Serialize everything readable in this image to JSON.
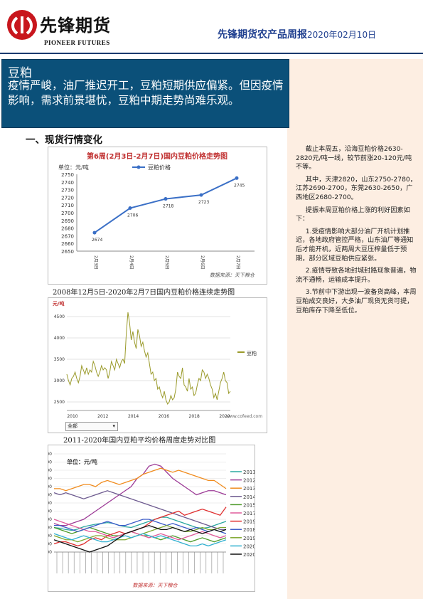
{
  "header": {
    "logo_cn": "先锋期货",
    "logo_en": "PIONEER FUTURES",
    "report_title": "先锋期货农产品周报",
    "report_date": "2020年02月10日"
  },
  "summary": {
    "title": "豆粕",
    "text": "疫情严峻，油厂推迟开工，豆粕短期供应偏紧。但因疫情影响，需求前景堪忧，豆粕中期走势尚难乐观。"
  },
  "section": {
    "heading": "一、现货行情变化"
  },
  "side": {
    "paragraphs": [
      "截止本周五，沿海豆粕价格2630-2820元/吨一线，较节前涨20-120元/吨不等。",
      "其中，天津2820，山东2750-2780，江苏2690-2700，东莞2630-2650，广西地区2680-2700。",
      "提振本周豆粕价格上涨的利好因素如下：",
      "1.受疫情影响大部分油厂开机计划推迟，各地政府管控严格，山东油厂等通知后才能开机，近两周大豆压榨量低于预期，部分区域豆粕供应紧张。",
      "2.疫情导致各地封城封路现象普遍，物流不通畅，运输成本提升。",
      "3.节前中下游出现一波备货高峰，本周豆粕成交良好，大多油厂现货无货可提，豆粕库存下降至低位。"
    ]
  },
  "captions": {
    "chart2": "2008年12月5日-2020年2月7日国内豆粕价格连续走势图",
    "chart3": "2011-2020年国内豆粕平均价格周度走势对比图"
  },
  "chart_data": [
    {
      "type": "line",
      "title": "第6周(2月3日-2月7日)国内豆粕价格走势图",
      "ylabel": "单位：元/吨",
      "legend": "豆粕价格",
      "categories": [
        "2月3日",
        "2月4日",
        "2月5日",
        "2月6日",
        "2月7日"
      ],
      "values": [
        2674,
        2706,
        2718,
        2723,
        2745
      ],
      "ylim": [
        2650,
        2750
      ],
      "yticks": [
        2650,
        2660,
        2670,
        2680,
        2690,
        2700,
        2710,
        2720,
        2730,
        2740,
        2750
      ],
      "source": "数据来源：天下粮仓",
      "color": "#3a6fc6"
    },
    {
      "type": "line",
      "ylabel": "元/吨",
      "legend": "豆粕",
      "xticks": [
        "2010",
        "2012",
        "2014",
        "2016",
        "2018",
        "2020"
      ],
      "yticks": [
        2500,
        3000,
        3500,
        4000,
        4500
      ],
      "ylim": [
        2300,
        4700
      ],
      "approx_series": [
        3150,
        3000,
        2900,
        3050,
        3100,
        3200,
        3050,
        2950,
        3100,
        3350,
        3250,
        3150,
        3300,
        3150,
        3250,
        3200,
        3450,
        3350,
        3200,
        3100,
        3200,
        3350,
        3250,
        3300,
        3250,
        3050,
        3200,
        3450,
        3350,
        3250,
        3500,
        3400,
        3300,
        3450,
        3500,
        3400,
        4100,
        4600,
        4350,
        3950,
        4150,
        3900,
        3750,
        4200,
        4050,
        3800,
        3900,
        3700,
        3550,
        3650,
        3400,
        3150,
        3200,
        3000,
        3050,
        2800,
        2850,
        2700,
        2600,
        2750,
        2550,
        2450,
        2500,
        2650,
        2550,
        2600,
        2800,
        3200,
        3100,
        3050,
        3300,
        2900,
        2850,
        2750,
        3050,
        2800,
        2850,
        2650,
        2700,
        2900,
        3050,
        3000,
        3250,
        3200,
        3050,
        3150,
        3050,
        2900,
        2800,
        2600,
        2700,
        2550,
        2750,
        2950,
        3050,
        3200,
        3000,
        2950,
        2700,
        2750
      ],
      "url": "www.cofeed.com",
      "select_value": "全部",
      "color": "#9a9a2a"
    },
    {
      "type": "line",
      "ylabel": "单位：元/吨",
      "yticks": [
        2400,
        2600,
        2800,
        3000,
        3200,
        3400,
        3600,
        3800,
        4000,
        4200,
        4400,
        4600,
        4800
      ],
      "ylim": [
        2400,
        4800
      ],
      "source": "数据来源：天下粮仓",
      "series": [
        {
          "name": "2011年",
          "color": "#2aa8a0",
          "values": [
            3000,
            2980,
            2950,
            2930,
            2960,
            3020,
            3050,
            3080,
            3100,
            3120,
            3100,
            3050,
            3020,
            3000,
            3050,
            3100,
            3150,
            3200,
            3250,
            3250,
            3200,
            3150,
            3100,
            3050,
            3000,
            2980,
            3000,
            3050,
            3100,
            3150
          ]
        },
        {
          "name": "2012年",
          "color": "#9c3a96",
          "values": [
            3100,
            3050,
            3050,
            3100,
            3150,
            3200,
            3300,
            3400,
            3500,
            3600,
            3700,
            3800,
            3900,
            4000,
            4200,
            4300,
            4500,
            4550,
            4500,
            4350,
            4200,
            4100,
            4000,
            3900,
            3800,
            3850,
            3900,
            3900,
            3850,
            3800
          ]
        },
        {
          "name": "2013年",
          "color": "#f08c1e",
          "values": [
            3950,
            3950,
            3900,
            3950,
            4000,
            4050,
            4050,
            4000,
            4100,
            4150,
            4100,
            4050,
            4100,
            4150,
            4200,
            4300,
            4350,
            4400,
            4450,
            4400,
            4350,
            4400,
            4350,
            4300,
            4250,
            4200,
            4150,
            4150,
            4050,
            3950
          ]
        },
        {
          "name": "2014年",
          "color": "#6d5a8f",
          "values": [
            3850,
            3800,
            3850,
            3800,
            3750,
            3700,
            3750,
            3800,
            3850,
            3900,
            3850,
            3800,
            3750,
            3700,
            3650,
            3600,
            3550,
            3500,
            3450,
            3400,
            3350,
            3300,
            3250,
            3200,
            3150,
            3100,
            3050,
            3000,
            2950,
            2950
          ]
        },
        {
          "name": "2015年",
          "color": "#4d9a2a",
          "values": [
            3000,
            2950,
            2900,
            2850,
            2900,
            2950,
            3000,
            2950,
            2900,
            2850,
            2800,
            2800,
            2850,
            2900,
            2850,
            2800,
            2800,
            2750,
            2700,
            2750,
            2800,
            2750,
            2700,
            2650,
            2700,
            2750,
            2700,
            2650,
            2700,
            2750
          ]
        },
        {
          "name": "2017年",
          "color": "#e05a9a",
          "values": [
            3200,
            3150,
            3100,
            3050,
            3000,
            2950,
            2900,
            2900,
            2850,
            2800,
            2750,
            2800,
            2850,
            2900,
            2850,
            2800,
            2750,
            2800,
            2850,
            2800,
            2750,
            2700,
            2750,
            2800,
            2850,
            2900,
            2850,
            2800,
            2750,
            2800
          ]
        },
        {
          "name": "2019年",
          "color": "#e03030",
          "values": [
            2600,
            2650,
            2650,
            2600,
            2550,
            2600,
            2700,
            2750,
            2700,
            2800,
            2850,
            2900,
            2850,
            2900,
            2950,
            3000,
            3100,
            3200,
            3250,
            3300,
            3350,
            3400,
            3300,
            3350,
            3400,
            3450,
            3400,
            3350,
            3300,
            3500
          ]
        },
        {
          "name": "2018年",
          "color": "#3a5ac8",
          "values": [
            3050,
            3050,
            3000,
            2950,
            2900,
            2950,
            3000,
            3050,
            3100,
            3150,
            3100,
            3050,
            3050,
            3100,
            3150,
            3200,
            3200,
            3150,
            3100,
            3050,
            3100,
            3050,
            3000,
            2950,
            3000,
            2950,
            2900,
            2950,
            2900,
            2850
          ]
        },
        {
          "name": "2019年",
          "color": "#7fa830",
          "values": [
            2800,
            2750,
            2700,
            2700,
            2650,
            2700,
            2750,
            2800,
            2800,
            2750,
            2700,
            2700,
            2700,
            2750,
            2800,
            2850,
            2900,
            2950,
            3000,
            3050,
            3000,
            2950,
            2900,
            2900,
            2950,
            3000,
            2950,
            2950,
            3000,
            3000
          ]
        },
        {
          "name": "2020年",
          "color": "#30b0d0",
          "values": [
            2850,
            2800,
            2750,
            2700,
            2750,
            2800,
            2750,
            2700,
            2650,
            2650,
            2700,
            2750,
            2800,
            2750,
            2800,
            2850,
            2800,
            2750,
            2800,
            2750,
            2700,
            2650,
            2600,
            2550,
            2550,
            2600,
            2550,
            2600,
            2650,
            2700
          ]
        },
        {
          "name": "2020年",
          "color": "#111111",
          "values": [
            2700,
            2650,
            2600,
            2550,
            2500,
            2450,
            2400,
            2450,
            2500,
            2550,
            2650,
            2750,
            2850,
            2900,
            2950,
            3000,
            3050,
            3000,
            2950,
            2950,
            3000,
            2950,
            2900,
            2950,
            2900,
            2850,
            2900,
            2950,
            2900,
            2950
          ]
        }
      ]
    }
  ]
}
